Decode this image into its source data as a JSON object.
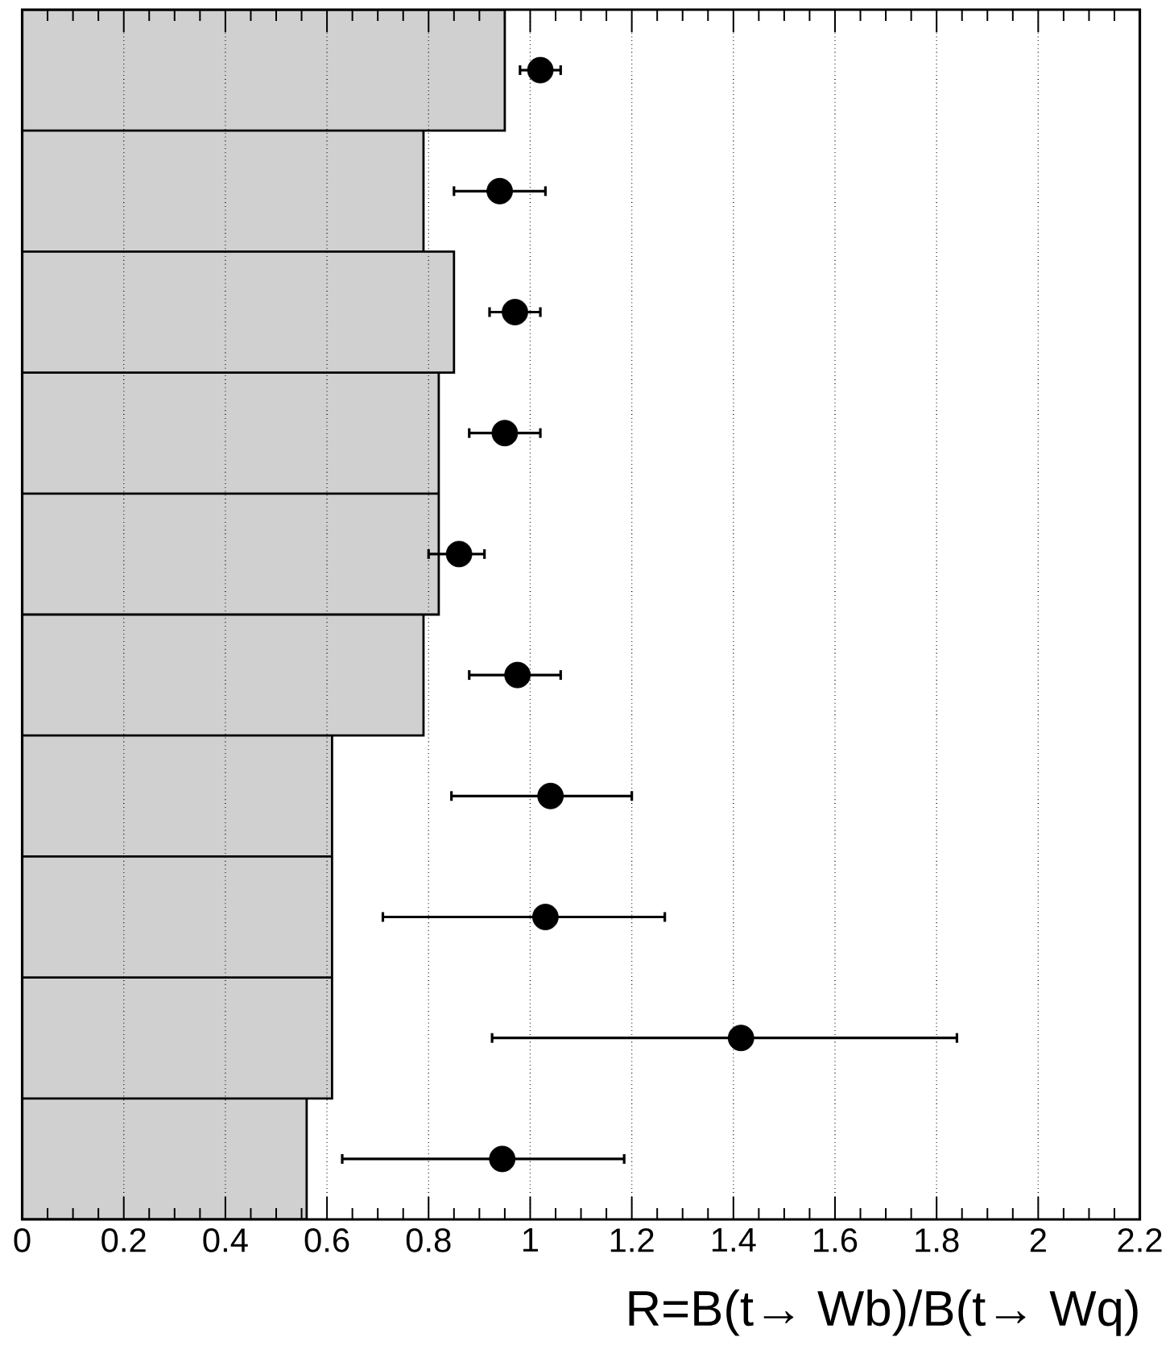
{
  "chart_data": {
    "type": "bar",
    "orientation": "horizontal",
    "xlabel": "R=B(t→ Wb)/B(t→ Wq)",
    "xlim": [
      0,
      2.2
    ],
    "xticks": [
      0,
      0.2,
      0.4,
      0.6,
      0.8,
      1,
      1.2,
      1.4,
      1.6,
      1.8,
      2,
      2.2
    ],
    "grid": "x",
    "marker": "circle",
    "categories": [
      null,
      null,
      null,
      null,
      null,
      null,
      null,
      null,
      null,
      null
    ],
    "series": [
      {
        "color": "#d0d0d0",
        "values": [
          0.95,
          0.79,
          0.85,
          0.82,
          0.82,
          0.79,
          0.61,
          0.61,
          0.61,
          0.56
        ]
      },
      {
        "type": "scatter",
        "color": "#000000",
        "values": [
          1.02,
          0.94,
          0.97,
          0.95,
          0.86,
          0.975,
          1.04,
          1.03,
          1.415,
          0.945
        ],
        "errors": [
          [
            0.98,
            1.06
          ],
          [
            0.85,
            1.03
          ],
          [
            0.92,
            1.02
          ],
          [
            0.88,
            1.02
          ],
          [
            0.8,
            0.91
          ],
          [
            0.88,
            1.06
          ],
          [
            0.845,
            1.2
          ],
          [
            0.71,
            1.265
          ],
          [
            0.925,
            1.84
          ],
          [
            0.63,
            1.185
          ]
        ]
      }
    ]
  }
}
